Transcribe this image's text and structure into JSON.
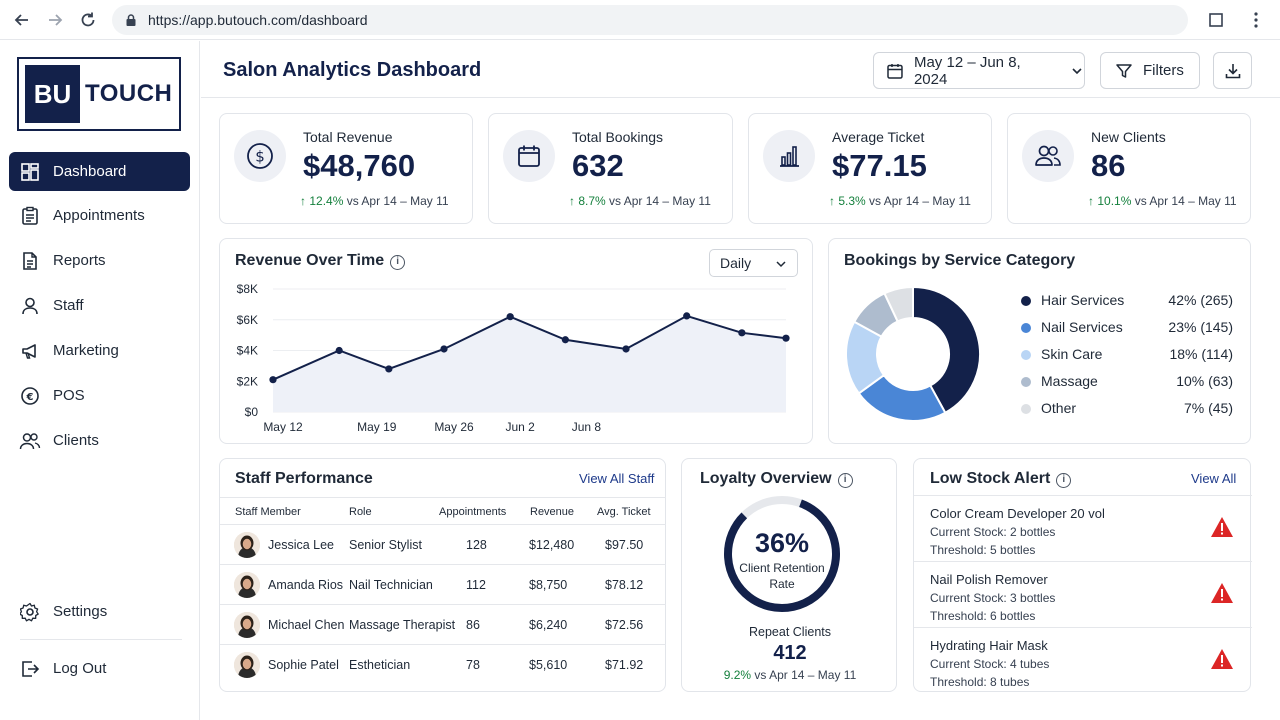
{
  "browser": {
    "url": "https://app.butouch.com/dashboard"
  },
  "sidebar": {
    "logo_left": "BU",
    "logo_right": "TOUCH",
    "items": [
      {
        "label": "Dashboard",
        "icon": "grid-icon"
      },
      {
        "label": "Appointments",
        "icon": "clipboard-icon"
      },
      {
        "label": "Reports",
        "icon": "document-icon"
      },
      {
        "label": "Staff",
        "icon": "person-icon"
      },
      {
        "label": "Marketing",
        "icon": "megaphone-icon"
      },
      {
        "label": "POS",
        "icon": "coin-icon"
      },
      {
        "label": "Clients",
        "icon": "people-icon"
      }
    ],
    "settings": "Settings",
    "logout": "Log Out"
  },
  "header": {
    "title": "Salon Analytics Dashboard",
    "date_range": "May 12 – Jun 8, 2024",
    "filters": "Filters"
  },
  "kpis": [
    {
      "label": "Total Revenue",
      "value": "$48,760",
      "delta": "12.4%",
      "compare": "vs Apr 14 – May 11",
      "icon": "dollar-icon"
    },
    {
      "label": "Total Bookings",
      "value": "632",
      "delta": "8.7%",
      "compare": "vs Apr 14 – May 11",
      "icon": "calendar-icon"
    },
    {
      "label": "Average Ticket",
      "value": "$77.15",
      "delta": "5.3%",
      "compare": "vs Apr 14 – May 11",
      "icon": "bar-chart-icon"
    },
    {
      "label": "New Clients",
      "value": "86",
      "delta": "10.1%",
      "compare": "vs Apr 14 – May 11",
      "icon": "people-icon"
    }
  ],
  "revenue_chart": {
    "title": "Revenue Over Time",
    "period": "Daily"
  },
  "chart_data": [
    {
      "type": "area",
      "title": "Revenue Over Time",
      "xlabel": "",
      "ylabel": "",
      "y_ticks": [
        "$0",
        "$2K",
        "$4K",
        "$6K",
        "$8K"
      ],
      "ylim": [
        0,
        8000
      ],
      "x_ticks": [
        "May 12",
        "May 19",
        "May 26",
        "Jun 2",
        "Jun 8"
      ],
      "x_index": [
        0,
        1.7,
        3.1,
        4.3,
        5.5
      ],
      "points": [
        {
          "x": 0.0,
          "y": 2100
        },
        {
          "x": 1.2,
          "y": 4000
        },
        {
          "x": 2.1,
          "y": 2800
        },
        {
          "x": 3.1,
          "y": 4100
        },
        {
          "x": 4.3,
          "y": 6200
        },
        {
          "x": 5.3,
          "y": 4700
        },
        {
          "x": 6.4,
          "y": 4100
        },
        {
          "x": 7.5,
          "y": 6250
        },
        {
          "x": 8.5,
          "y": 5150
        },
        {
          "x": 9.3,
          "y": 4800
        }
      ],
      "x_range": [
        0,
        9.3
      ],
      "grid": true,
      "color": "#13214a"
    },
    {
      "type": "pie",
      "title": "Bookings by Service Category",
      "donut": true,
      "slices": [
        {
          "label": "Hair Services",
          "percent": 42,
          "count": 265,
          "display": "42% (265)",
          "color": "#13214a"
        },
        {
          "label": "Nail Services",
          "percent": 23,
          "count": 145,
          "display": "23% (145)",
          "color": "#4a86d6"
        },
        {
          "label": "Skin Care",
          "percent": 18,
          "count": 114,
          "display": "18% (114)",
          "color": "#b9d5f5"
        },
        {
          "label": "Massage",
          "percent": 10,
          "count": 63,
          "display": "10% (63)",
          "color": "#aebcce"
        },
        {
          "label": "Other",
          "percent": 7,
          "count": 45,
          "display": "7% (45)",
          "color": "#dde0e4"
        }
      ]
    }
  ],
  "staff": {
    "title": "Staff Performance",
    "view_all": "View All Staff",
    "columns": [
      "Staff Member",
      "Role",
      "Appointments",
      "Revenue",
      "Avg. Ticket"
    ],
    "rows": [
      {
        "name": "Jessica Lee",
        "role": "Senior Stylist",
        "appointments": "128",
        "revenue": "$12,480",
        "avg": "$97.50"
      },
      {
        "name": "Amanda Rios",
        "role": "Nail Technician",
        "appointments": "112",
        "revenue": "$8,750",
        "avg": "$78.12"
      },
      {
        "name": "Michael Chen",
        "role": "Massage Therapist",
        "appointments": "86",
        "revenue": "$6,240",
        "avg": "$72.56"
      },
      {
        "name": "Sophie Patel",
        "role": "Esthetician",
        "appointments": "78",
        "revenue": "$5,610",
        "avg": "$71.92"
      }
    ]
  },
  "loyalty": {
    "title": "Loyalty Overview",
    "retention_value": "36%",
    "retention_fraction": 0.36,
    "retention_label_1": "Client Retention",
    "retention_label_2": "Rate",
    "repeat_label": "Repeat Clients",
    "repeat_value": "412",
    "delta": "9.2%",
    "compare": "vs Apr 14 – May 11"
  },
  "low_stock": {
    "title": "Low Stock Alert",
    "view_all": "View All",
    "items": [
      {
        "name": "Color Cream Developer 20 vol",
        "stock": "Current Stock: 2 bottles",
        "threshold": "Threshold: 5 bottles"
      },
      {
        "name": "Nail Polish Remover",
        "stock": "Current Stock: 3 bottles",
        "threshold": "Threshold: 6 bottles"
      },
      {
        "name": "Hydrating Hair Mask",
        "stock": "Current Stock: 4 tubes",
        "threshold": "Threshold: 8 tubes"
      }
    ]
  },
  "colors": {
    "navy": "#13214a",
    "up_green": "#15803d",
    "alert_red": "#dc2626"
  }
}
